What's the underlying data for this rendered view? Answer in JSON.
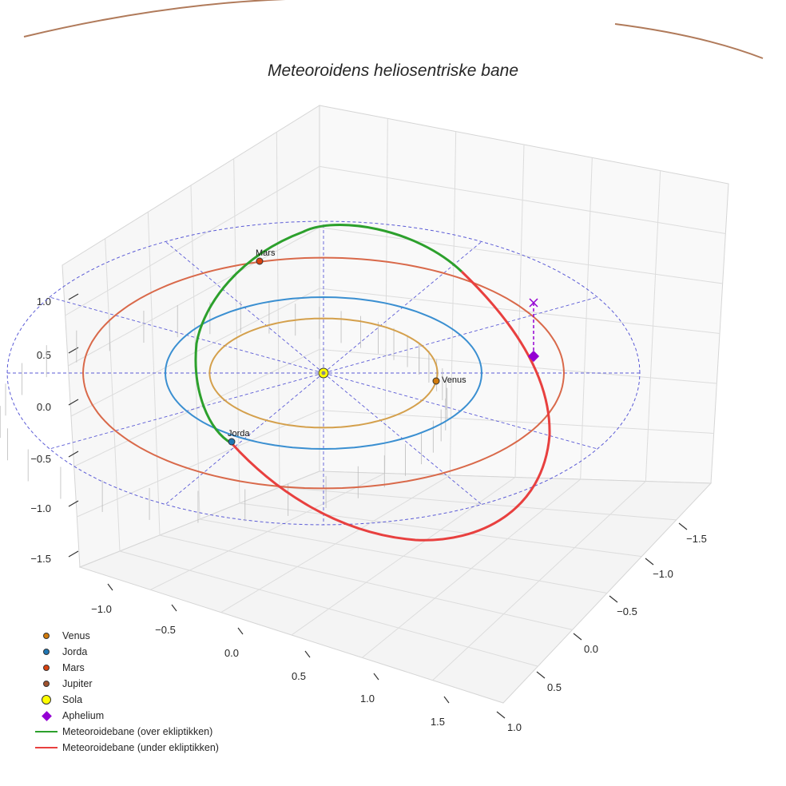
{
  "chart_data": {
    "type": "scatter3d",
    "title": "Meteoroidens heliosentriske bane",
    "x_ticks": [
      "−1.0",
      "−0.5",
      "0.0",
      "0.5",
      "1.0",
      "1.5"
    ],
    "y_ticks": [
      "−1.5",
      "−1.0",
      "−0.5",
      "0.0",
      "0.5",
      "1.0"
    ],
    "z_ticks": [
      "1.0",
      "0.5",
      "0.0",
      "−0.5",
      "−1.0",
      "−1.5"
    ],
    "xlim": [
      -1.3,
      1.8
    ],
    "ylim": [
      -1.8,
      1.1
    ],
    "zlim": [
      -1.7,
      1.2
    ],
    "planets": [
      {
        "name": "Venus",
        "a_au": 0.72,
        "color": "#d4a04c",
        "marker_color": "#d17a0b",
        "marker_x": 0.72,
        "marker_y": 0.0
      },
      {
        "name": "Jorda",
        "a_au": 1.0,
        "color": "#3a8fd1",
        "marker_color": "#1f77b4",
        "marker_x": -0.6,
        "marker_y": -0.8
      },
      {
        "name": "Mars",
        "a_au": 1.52,
        "color": "#d9694a",
        "marker_color": "#d9420f",
        "marker_x": -0.43,
        "marker_y": 1.46
      },
      {
        "name": "Jupiter",
        "a_au": 5.2,
        "color": "#b07a5a",
        "marker_color": "#a0522d"
      }
    ],
    "sun": {
      "name": "Sola",
      "x": 0,
      "y": 0,
      "z": 0,
      "color": "#ffff00"
    },
    "aphelion": {
      "name": "Aphelium",
      "x": 1.35,
      "y": 0.2,
      "z": 0.55,
      "color": "#9400d3"
    },
    "meteoroid_orbit": {
      "semi_major_axis_au": 1.45,
      "eccentricity": 0.43,
      "inclination_deg": 22,
      "above_label": "Meteoroidebane (over ekliptikken)",
      "below_label": "Meteoroidebane (under ekliptikken)",
      "above_color": "#2ca02c",
      "below_color": "#e8403f"
    },
    "ecliptic_grid_radius_au": 2.0
  },
  "legend": {
    "items": [
      {
        "label": "Venus",
        "kind": "dot",
        "color": "#d17a0b"
      },
      {
        "label": "Jorda",
        "kind": "dot",
        "color": "#1f77b4"
      },
      {
        "label": "Mars",
        "kind": "dot",
        "color": "#d9420f"
      },
      {
        "label": "Jupiter",
        "kind": "dot",
        "color": "#a0522d"
      },
      {
        "label": "Sola",
        "kind": "bigdot",
        "color": "#ffff00"
      },
      {
        "label": "Aphelium",
        "kind": "diamond",
        "color": "#9400d3"
      },
      {
        "label": "Meteoroidebane (over ekliptikken)",
        "kind": "line",
        "color": "#2ca02c"
      },
      {
        "label": "Meteoroidebane (under ekliptikken)",
        "kind": "line",
        "color": "#e8403f"
      }
    ]
  }
}
